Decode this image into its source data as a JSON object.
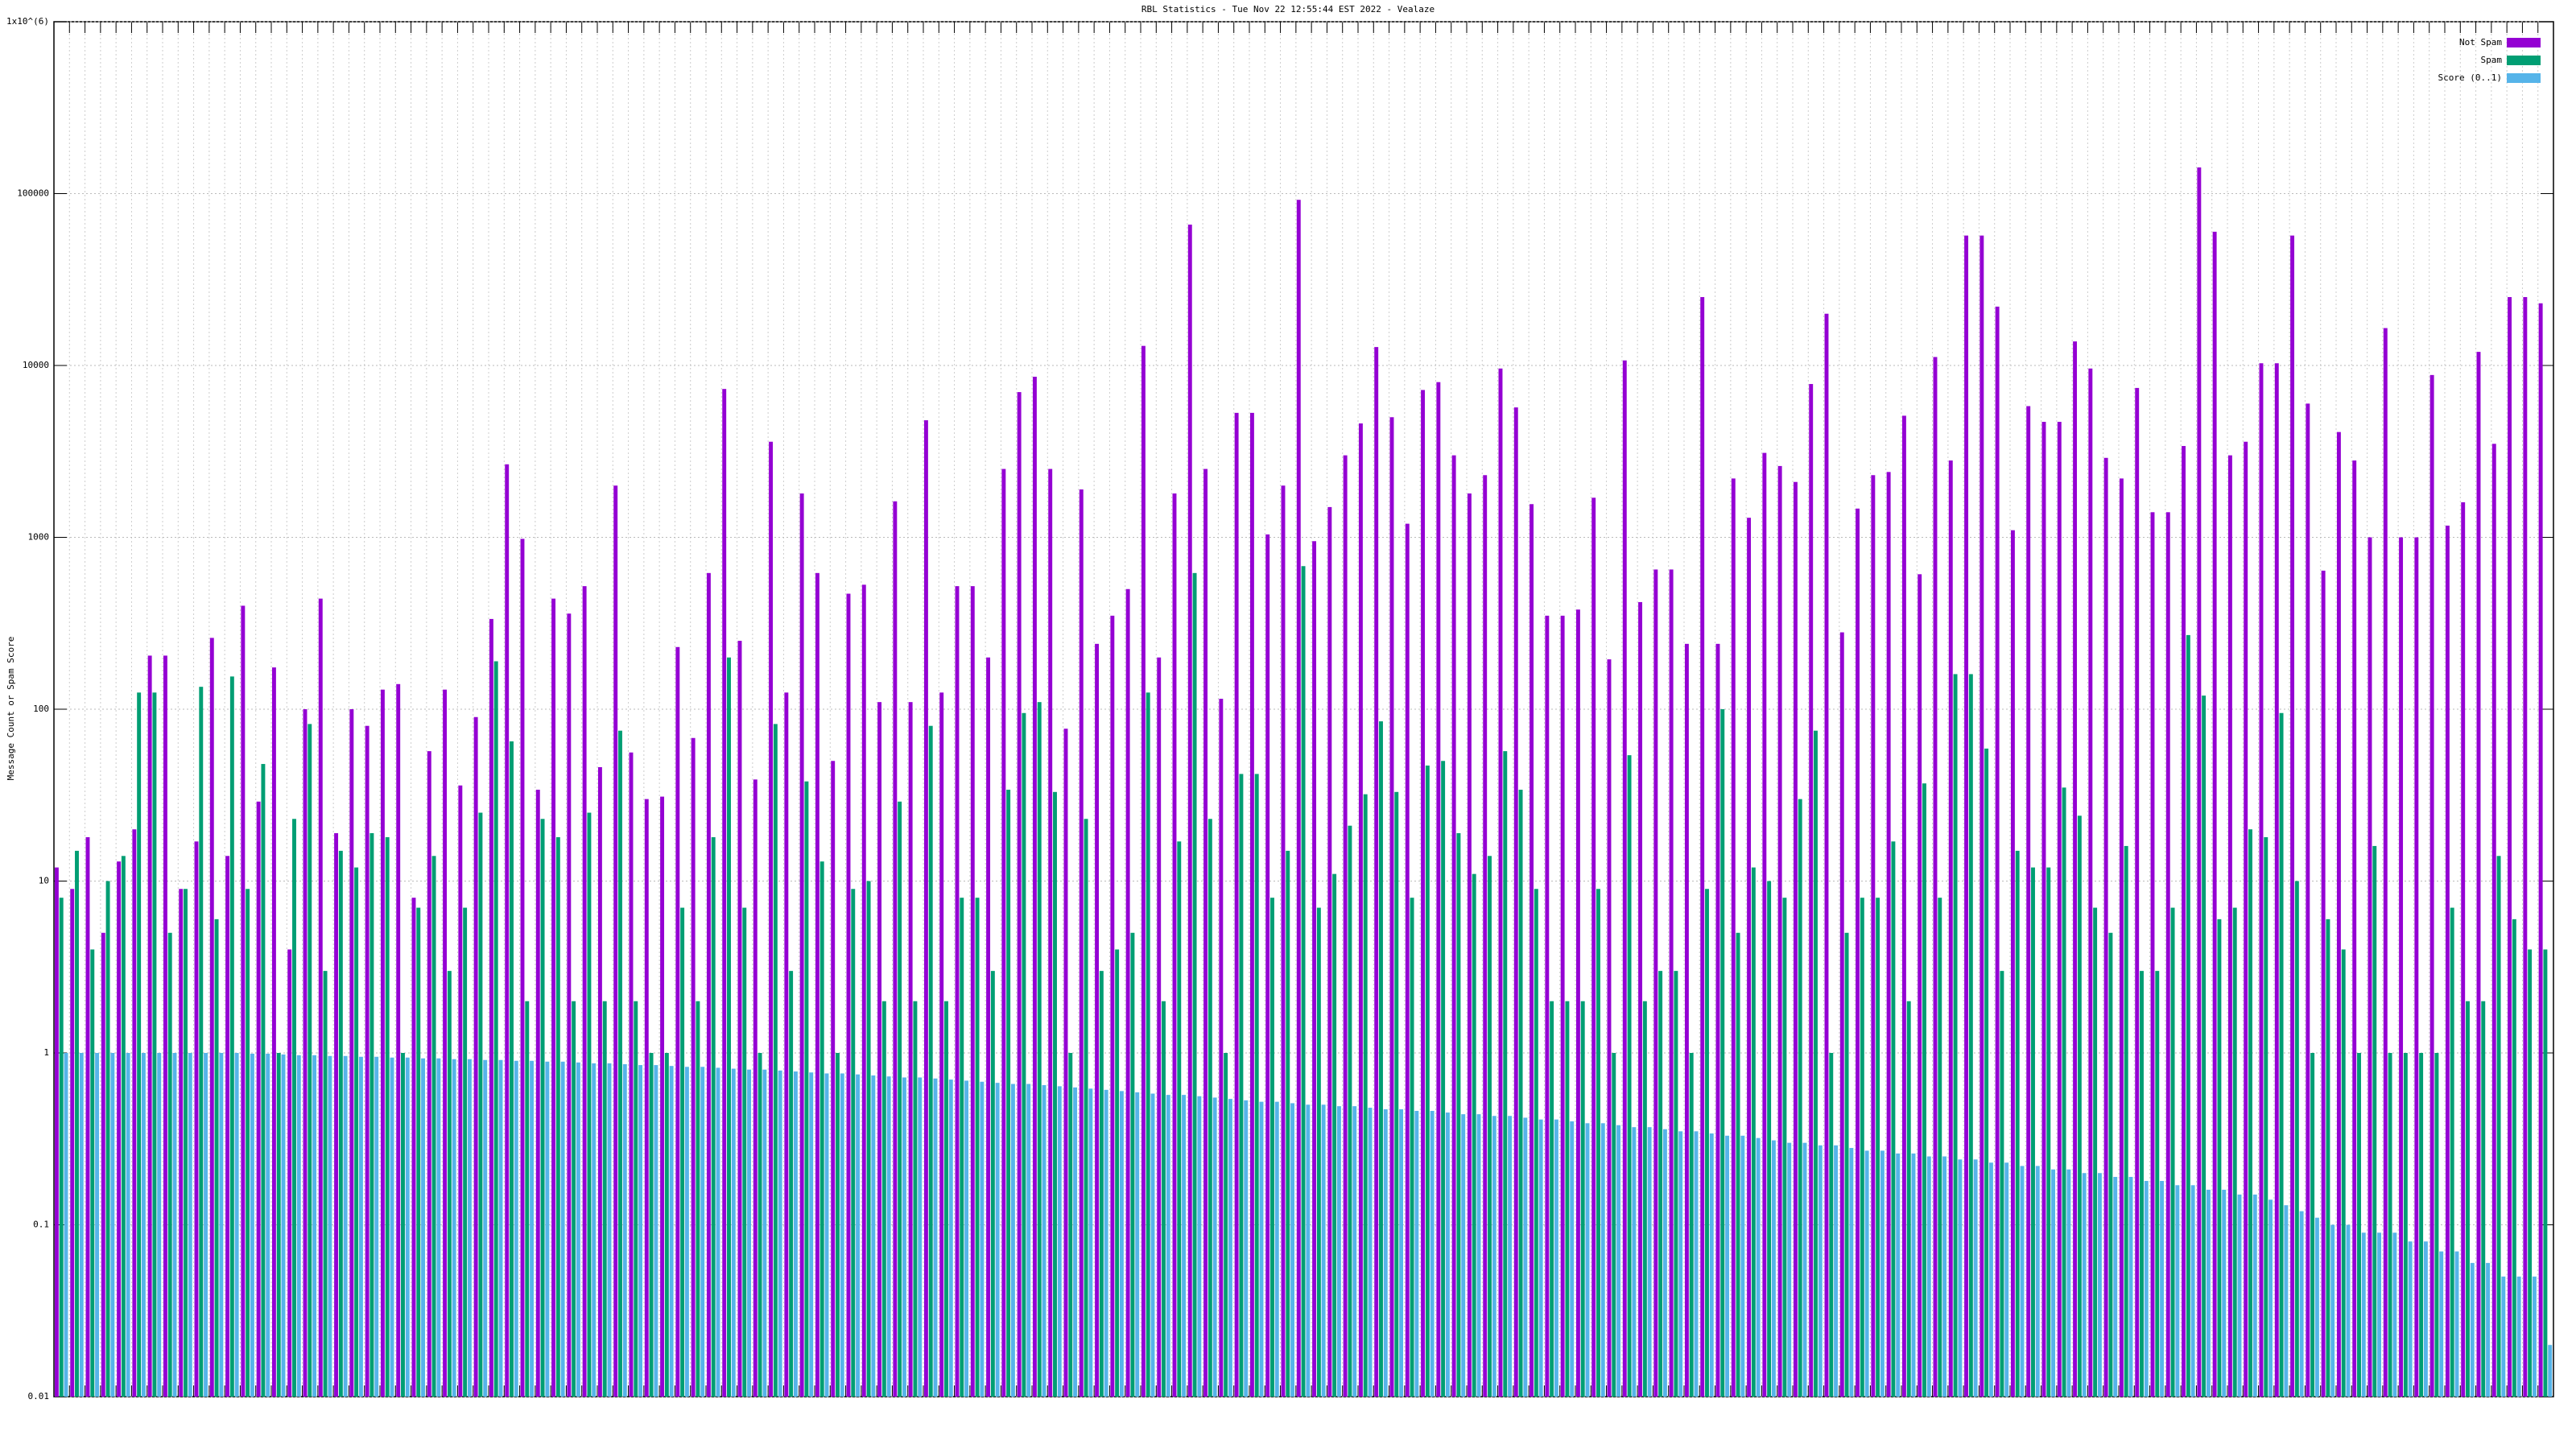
{
  "chart_data": {
    "type": "bar",
    "title": "RBL Statistics - Tue Nov 22 12:55:44 EST 2022 - Vealaze",
    "y_label": "Message Count or Spam Score",
    "log_scale": true,
    "grid": true,
    "legend": "top-right",
    "ylim": [
      0.01,
      1000000
    ],
    "yticks": [
      0.01,
      0.1,
      1,
      10,
      100,
      1000,
      10000,
      100000,
      {
        "value": 1000000,
        "label": "1x10^(6)"
      }
    ],
    "categories": [
      null,
      null,
      null,
      null,
      null,
      null,
      null,
      null,
      null,
      null,
      null,
      null,
      null,
      null,
      null,
      null,
      null,
      null,
      null,
      null,
      null,
      null,
      null,
      null,
      null,
      null,
      null,
      null,
      null,
      null,
      null,
      null,
      null,
      null,
      null,
      null,
      null,
      null,
      null,
      null,
      null,
      null,
      null,
      null,
      null,
      null,
      null,
      null,
      null,
      null,
      null,
      null,
      null,
      null,
      null,
      null,
      null,
      null,
      null,
      null,
      null,
      null,
      null,
      null,
      null,
      null,
      null,
      null,
      null,
      null,
      null,
      null,
      null,
      null,
      null,
      null,
      null,
      null,
      null,
      null,
      null,
      null,
      null,
      null,
      null,
      null,
      null,
      null,
      null,
      null,
      null,
      null,
      null,
      null,
      null,
      null,
      null,
      null,
      null,
      null,
      null,
      null,
      null,
      null,
      null,
      null,
      null,
      null,
      null,
      null,
      null,
      null,
      null,
      null,
      null,
      null,
      null,
      null,
      null,
      null,
      null,
      null,
      null,
      null,
      null,
      null,
      null,
      null,
      null,
      null,
      null,
      null,
      null,
      null,
      null,
      null,
      null,
      null,
      null,
      null,
      null,
      null,
      null,
      null,
      null,
      null,
      null,
      null,
      null,
      null,
      null,
      null,
      null,
      null,
      null,
      null,
      null,
      null,
      null,
      null,
      null
    ],
    "series": [
      {
        "name": "Not Spam",
        "color": "#9400d3",
        "values": [
          12,
          9,
          18,
          5,
          13,
          20,
          205,
          205,
          9,
          17,
          260,
          14,
          400,
          29,
          175,
          4,
          100,
          440,
          19,
          100,
          80,
          130,
          140,
          8,
          57,
          130,
          36,
          90,
          335,
          2660,
          980,
          34,
          440,
          360,
          520,
          46,
          2000,
          56,
          30,
          31,
          230,
          68,
          620,
          7300,
          250,
          39,
          3600,
          125,
          1800,
          620,
          50,
          470,
          530,
          110,
          1620,
          110,
          4800,
          125,
          520,
          520,
          200,
          2500,
          7000,
          8600,
          2500,
          77,
          1900,
          240,
          350,
          500,
          13000,
          200,
          1800,
          66000,
          2500,
          115,
          5300,
          5300,
          1040,
          2000,
          92000,
          950,
          1500,
          3000,
          4600,
          12800,
          5000,
          1200,
          7200,
          8000,
          3000,
          1800,
          2300,
          9600,
          5700,
          1560,
          350,
          350,
          380,
          1700,
          195,
          10700,
          420,
          650,
          650,
          240,
          25000,
          240,
          2200,
          1300,
          3100,
          2600,
          2100,
          7800,
          20000,
          280,
          1470,
          2300,
          2400,
          5100,
          610,
          11200,
          2800,
          57000,
          57000,
          22000,
          1100,
          5800,
          4700,
          4700,
          13800,
          9600,
          2900,
          2200,
          7400,
          1400,
          1400,
          3400,
          142000,
          60000,
          3000,
          3600,
          10300,
          10300,
          57000,
          6000,
          640,
          4100,
          2800,
          1000,
          16500,
          1000,
          1000,
          8800,
          1170,
          1600,
          12000,
          3500,
          25000,
          25000,
          23000
        ]
      },
      {
        "name": "Spam",
        "color": "#009e73",
        "values": [
          8,
          15,
          4,
          10,
          14,
          125,
          125,
          5,
          9,
          135,
          6,
          155,
          9,
          48,
          1,
          23,
          82,
          3,
          15,
          12,
          19,
          18,
          1,
          7,
          14,
          3,
          7,
          25,
          190,
          65,
          2,
          23,
          18,
          2,
          25,
          2,
          75,
          2,
          1,
          1,
          7,
          2,
          18,
          200,
          7,
          1,
          82,
          3,
          38,
          13,
          1,
          9,
          10,
          2,
          29,
          2,
          80,
          2,
          8,
          8,
          3,
          34,
          95,
          110,
          33,
          1,
          23,
          3,
          4,
          5,
          125,
          2,
          17,
          620,
          23,
          1,
          42,
          42,
          8,
          15,
          680,
          7,
          11,
          21,
          32,
          85,
          33,
          8,
          47,
          50,
          19,
          11,
          14,
          57,
          34,
          9,
          2,
          2,
          2,
          9,
          1,
          54,
          2,
          3,
          3,
          1,
          9,
          100,
          5,
          12,
          10,
          8,
          30,
          75,
          1,
          5,
          8,
          8,
          17,
          2,
          37,
          8,
          160,
          160,
          59,
          3,
          15,
          12,
          12,
          35,
          24,
          7,
          5,
          16,
          3,
          3,
          7,
          270,
          120,
          6,
          7,
          20,
          18,
          95,
          10,
          1,
          6,
          4,
          1,
          16,
          1,
          1,
          1,
          1,
          7,
          2,
          2,
          14,
          6,
          4,
          4
        ]
      },
      {
        "name": "Score (0..1)",
        "color": "#56b4e9",
        "values": [
          1,
          1,
          1,
          1,
          1,
          1,
          1,
          1,
          1,
          1,
          1,
          1,
          0.99,
          0.99,
          0.98,
          0.97,
          0.97,
          0.96,
          0.96,
          0.95,
          0.95,
          0.94,
          0.94,
          0.93,
          0.93,
          0.92,
          0.92,
          0.91,
          0.91,
          0.9,
          0.9,
          0.89,
          0.89,
          0.88,
          0.87,
          0.87,
          0.86,
          0.85,
          0.85,
          0.84,
          0.83,
          0.83,
          0.82,
          0.81,
          0.8,
          0.8,
          0.79,
          0.78,
          0.77,
          0.76,
          0.76,
          0.75,
          0.74,
          0.73,
          0.72,
          0.72,
          0.71,
          0.7,
          0.69,
          0.68,
          0.67,
          0.66,
          0.66,
          0.65,
          0.64,
          0.63,
          0.62,
          0.61,
          0.6,
          0.59,
          0.58,
          0.57,
          0.57,
          0.56,
          0.55,
          0.54,
          0.53,
          0.52,
          0.52,
          0.51,
          0.5,
          0.5,
          0.49,
          0.49,
          0.48,
          0.47,
          0.47,
          0.46,
          0.46,
          0.45,
          0.44,
          0.44,
          0.43,
          0.43,
          0.42,
          0.41,
          0.41,
          0.4,
          0.39,
          0.39,
          0.38,
          0.37,
          0.37,
          0.36,
          0.35,
          0.35,
          0.34,
          0.33,
          0.33,
          0.32,
          0.31,
          0.3,
          0.3,
          0.29,
          0.29,
          0.28,
          0.27,
          0.27,
          0.26,
          0.26,
          0.25,
          0.25,
          0.24,
          0.24,
          0.23,
          0.23,
          0.22,
          0.22,
          0.21,
          0.21,
          0.2,
          0.2,
          0.19,
          0.19,
          0.18,
          0.18,
          0.17,
          0.17,
          0.16,
          0.16,
          0.15,
          0.15,
          0.14,
          0.13,
          0.12,
          0.11,
          0.1,
          0.1,
          0.09,
          0.09,
          0.09,
          0.08,
          0.08,
          0.07,
          0.07,
          0.06,
          0.06,
          0.05,
          0.05,
          0.05,
          0.02
        ]
      }
    ]
  }
}
